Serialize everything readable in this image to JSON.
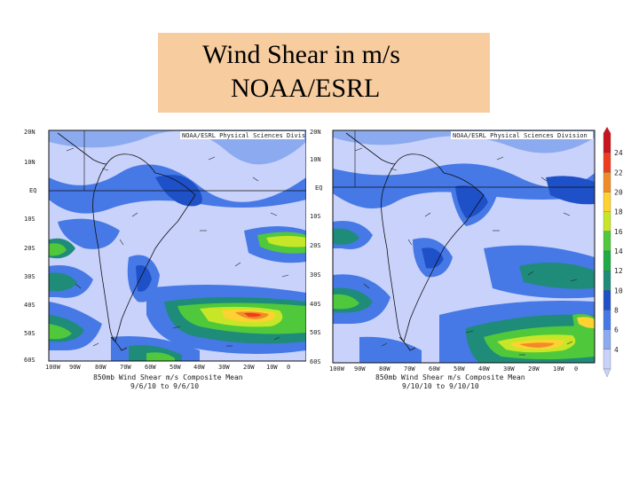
{
  "title": {
    "line1": "Wind Shear in m/s",
    "line2": "NOAA/ESRL"
  },
  "left_panel": {
    "header": "NOAA/ESRL Physical Sciences Division",
    "lat_labels": [
      "20N",
      "10N",
      "EQ",
      "10S",
      "20S",
      "30S",
      "40S",
      "50S",
      "60S"
    ],
    "lon_labels": [
      "100W",
      "90W",
      "80W",
      "70W",
      "60W",
      "50W",
      "40W",
      "30W",
      "20W",
      "10W",
      "0"
    ],
    "caption_line1": "850mb Wind Shear m/s Composite Mean",
    "caption_line2": "9/6/10 to 9/6/10"
  },
  "right_panel": {
    "header": "NOAA/ESRL Physical Sciences Division",
    "lat_labels": [
      "20N",
      "10N",
      "EQ",
      "10S",
      "20S",
      "30S",
      "40S",
      "50S",
      "60S"
    ],
    "lon_labels": [
      "100W",
      "90W",
      "80W",
      "70W",
      "60W",
      "50W",
      "40W",
      "30W",
      "20W",
      "10W",
      "0"
    ],
    "caption_line1": "850mb Wind Shear m/s Composite Mean",
    "caption_line2": "9/10/10 to 9/10/10"
  },
  "colorbar": {
    "levels": [
      "24",
      "22",
      "20",
      "18",
      "16",
      "14",
      "12",
      "10",
      "8",
      "6",
      "4"
    ],
    "colors": [
      "#c8141e",
      "#ee3c1e",
      "#f08c28",
      "#ffd232",
      "#c8e628",
      "#50c83c",
      "#1eaa46",
      "#1e8c78",
      "#1e50c8",
      "#4678e6",
      "#8caaf0",
      "#c8d2fa"
    ]
  }
}
